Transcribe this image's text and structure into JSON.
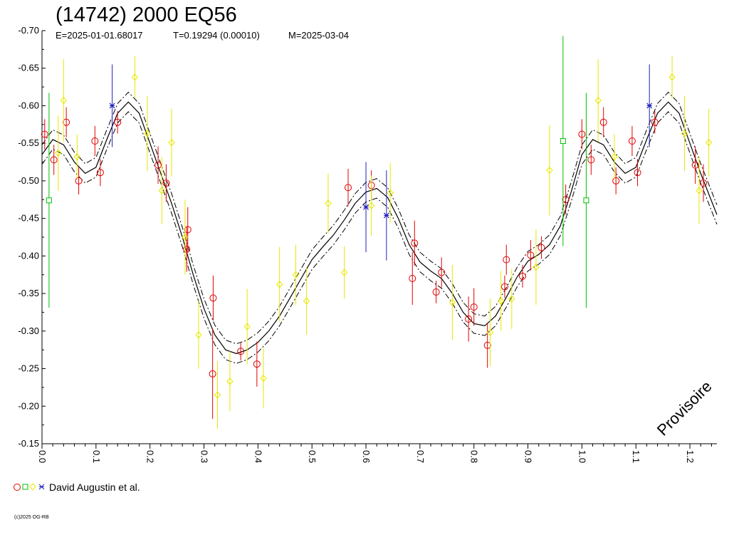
{
  "header": {
    "title": "(14742) 2000 EQ56",
    "epoch": "E=2025-01-01.68017",
    "period": "T=0.19294 (0.00010)",
    "date": "M=2025-03-04"
  },
  "legend": {
    "label": "David Augustin et al."
  },
  "watermark": "Provisoire",
  "copyright": "(c)2025 OG-RB",
  "chart_data": {
    "type": "scatter",
    "xlim": [
      0.0,
      1.25
    ],
    "ylim": [
      -0.7,
      -0.15
    ],
    "y_inverted": true,
    "grid": false,
    "x_ticks": [
      "0.0",
      "0.1",
      "0.2",
      "0.3",
      "0.4",
      "0.5",
      "0.6",
      "0.7",
      "0.8",
      "0.9",
      "1.0",
      "1.1",
      "1.2"
    ],
    "y_ticks": [
      "-0.70",
      "-0.65",
      "-0.60",
      "-0.55",
      "-0.50",
      "-0.45",
      "-0.40",
      "-0.35",
      "-0.30",
      "-0.25",
      "-0.20",
      "-0.15"
    ],
    "fit_curve": {
      "x": [
        0.0,
        0.02,
        0.04,
        0.06,
        0.08,
        0.1,
        0.12,
        0.14,
        0.16,
        0.18,
        0.2,
        0.22,
        0.24,
        0.26,
        0.28,
        0.3,
        0.32,
        0.34,
        0.36,
        0.38,
        0.4,
        0.42,
        0.44,
        0.46,
        0.48,
        0.5,
        0.52,
        0.54,
        0.56,
        0.58,
        0.6,
        0.62,
        0.64,
        0.66,
        0.68,
        0.7,
        0.72,
        0.74,
        0.76,
        0.78,
        0.8,
        0.82,
        0.84,
        0.86,
        0.88,
        0.9,
        0.92,
        0.94,
        0.96,
        0.98,
        1.0,
        1.02,
        1.04,
        1.06,
        1.08,
        1.1,
        1.12,
        1.14,
        1.16,
        1.18,
        1.2,
        1.22,
        1.25
      ],
      "y": [
        -0.535,
        -0.555,
        -0.548,
        -0.525,
        -0.51,
        -0.518,
        -0.555,
        -0.59,
        -0.605,
        -0.59,
        -0.55,
        -0.51,
        -0.47,
        -0.425,
        -0.375,
        -0.33,
        -0.295,
        -0.275,
        -0.27,
        -0.275,
        -0.285,
        -0.3,
        -0.32,
        -0.345,
        -0.37,
        -0.395,
        -0.412,
        -0.428,
        -0.448,
        -0.47,
        -0.485,
        -0.49,
        -0.478,
        -0.45,
        -0.415,
        -0.392,
        -0.38,
        -0.37,
        -0.35,
        -0.325,
        -0.31,
        -0.307,
        -0.32,
        -0.345,
        -0.372,
        -0.393,
        -0.402,
        -0.415,
        -0.44,
        -0.485,
        -0.535,
        -0.555,
        -0.548,
        -0.525,
        -0.51,
        -0.518,
        -0.555,
        -0.59,
        -0.605,
        -0.59,
        -0.55,
        -0.51,
        -0.455
      ],
      "band": 0.013
    },
    "series": [
      {
        "marker": "circle",
        "color": "#e00000",
        "points": [
          {
            "x": 0.005,
            "y": -0.562,
            "e": 0.02
          },
          {
            "x": 0.022,
            "y": -0.528,
            "e": 0.02
          },
          {
            "x": 0.045,
            "y": -0.578,
            "e": 0.02
          },
          {
            "x": 0.068,
            "y": -0.5,
            "e": 0.018
          },
          {
            "x": 0.098,
            "y": -0.553,
            "e": 0.02
          },
          {
            "x": 0.108,
            "y": -0.511,
            "e": 0.018
          },
          {
            "x": 0.14,
            "y": -0.578,
            "e": 0.015
          },
          {
            "x": 0.215,
            "y": -0.521,
            "e": 0.025
          },
          {
            "x": 0.23,
            "y": -0.497,
            "e": 0.025
          },
          {
            "x": 0.27,
            "y": -0.435,
            "e": 0.03
          },
          {
            "x": 0.268,
            "y": -0.409,
            "e": 0.03
          },
          {
            "x": 0.317,
            "y": -0.344,
            "e": 0.03
          },
          {
            "x": 0.316,
            "y": -0.243,
            "e": 0.06
          },
          {
            "x": 0.368,
            "y": -0.273,
            "e": 0.012
          },
          {
            "x": 0.398,
            "y": -0.256,
            "e": 0.03
          },
          {
            "x": 0.567,
            "y": -0.491,
            "e": 0.025
          },
          {
            "x": 0.61,
            "y": -0.494,
            "e": 0.02
          },
          {
            "x": 0.686,
            "y": -0.37,
            "e": 0.035
          },
          {
            "x": 0.69,
            "y": -0.417,
            "e": 0.03
          },
          {
            "x": 0.73,
            "y": -0.352,
            "e": 0.015
          },
          {
            "x": 0.74,
            "y": -0.378,
            "e": 0.02
          },
          {
            "x": 0.79,
            "y": -0.316,
            "e": 0.03
          },
          {
            "x": 0.8,
            "y": -0.332,
            "e": 0.025
          },
          {
            "x": 0.825,
            "y": -0.281,
            "e": 0.03
          },
          {
            "x": 0.857,
            "y": -0.359,
            "e": 0.015
          },
          {
            "x": 0.86,
            "y": -0.395,
            "e": 0.02
          },
          {
            "x": 0.89,
            "y": -0.373,
            "e": 0.015
          },
          {
            "x": 0.905,
            "y": -0.401,
            "e": 0.02
          },
          {
            "x": 0.925,
            "y": -0.411,
            "e": 0.015
          },
          {
            "x": 0.97,
            "y": -0.475,
            "e": 0.02
          },
          {
            "x": 1.0,
            "y": -0.562,
            "e": 0.02
          },
          {
            "x": 1.017,
            "y": -0.528,
            "e": 0.02
          },
          {
            "x": 1.04,
            "y": -0.578,
            "e": 0.02
          },
          {
            "x": 1.063,
            "y": -0.5,
            "e": 0.018
          },
          {
            "x": 1.093,
            "y": -0.553,
            "e": 0.02
          },
          {
            "x": 1.103,
            "y": -0.511,
            "e": 0.018
          },
          {
            "x": 1.135,
            "y": -0.578,
            "e": 0.015
          },
          {
            "x": 1.21,
            "y": -0.521,
            "e": 0.025
          },
          {
            "x": 1.225,
            "y": -0.497,
            "e": 0.025
          }
        ]
      },
      {
        "marker": "square",
        "color": "#00c000",
        "points": [
          {
            "x": 0.013,
            "y": -0.474,
            "e": 0.143
          },
          {
            "x": 0.965,
            "y": -0.553,
            "e": 0.14
          },
          {
            "x": 1.008,
            "y": -0.474,
            "e": 0.143
          }
        ]
      },
      {
        "marker": "diamond",
        "color": "#e8e800",
        "points": [
          {
            "x": 0.03,
            "y": -0.537,
            "e": 0.05
          },
          {
            "x": 0.04,
            "y": -0.607,
            "e": 0.055
          },
          {
            "x": 0.065,
            "y": -0.532,
            "e": 0.03
          },
          {
            "x": 0.172,
            "y": -0.638,
            "e": 0.028
          },
          {
            "x": 0.195,
            "y": -0.563,
            "e": 0.05
          },
          {
            "x": 0.222,
            "y": -0.487,
            "e": 0.045
          },
          {
            "x": 0.24,
            "y": -0.551,
            "e": 0.045
          },
          {
            "x": 0.265,
            "y": -0.425,
            "e": 0.05
          },
          {
            "x": 0.29,
            "y": -0.295,
            "e": 0.045
          },
          {
            "x": 0.325,
            "y": -0.215,
            "e": 0.045
          },
          {
            "x": 0.348,
            "y": -0.233,
            "e": 0.04
          },
          {
            "x": 0.38,
            "y": -0.306,
            "e": 0.05
          },
          {
            "x": 0.41,
            "y": -0.237,
            "e": 0.04
          },
          {
            "x": 0.44,
            "y": -0.362,
            "e": 0.05
          },
          {
            "x": 0.47,
            "y": -0.375,
            "e": 0.04
          },
          {
            "x": 0.49,
            "y": -0.34,
            "e": 0.045
          },
          {
            "x": 0.53,
            "y": -0.47,
            "e": 0.04
          },
          {
            "x": 0.56,
            "y": -0.378,
            "e": 0.035
          },
          {
            "x": 0.61,
            "y": -0.467,
            "e": 0.04
          },
          {
            "x": 0.645,
            "y": -0.484,
            "e": 0.04
          },
          {
            "x": 0.76,
            "y": -0.338,
            "e": 0.05
          },
          {
            "x": 0.83,
            "y": -0.298,
            "e": 0.045
          },
          {
            "x": 0.85,
            "y": -0.34,
            "e": 0.04
          },
          {
            "x": 0.87,
            "y": -0.343,
            "e": 0.04
          },
          {
            "x": 0.915,
            "y": -0.385,
            "e": 0.05
          },
          {
            "x": 0.94,
            "y": -0.514,
            "e": 0.06
          },
          {
            "x": 1.03,
            "y": -0.607,
            "e": 0.055
          },
          {
            "x": 1.06,
            "y": -0.532,
            "e": 0.03
          },
          {
            "x": 1.167,
            "y": -0.638,
            "e": 0.028
          },
          {
            "x": 1.19,
            "y": -0.563,
            "e": 0.05
          },
          {
            "x": 1.217,
            "y": -0.487,
            "e": 0.045
          },
          {
            "x": 1.235,
            "y": -0.551,
            "e": 0.045
          }
        ]
      },
      {
        "marker": "star",
        "color": "#2020c0",
        "points": [
          {
            "x": 0.13,
            "y": -0.6,
            "e": 0.055
          },
          {
            "x": 0.6,
            "y": -0.465,
            "e": 0.06
          },
          {
            "x": 0.638,
            "y": -0.454,
            "e": 0.06
          },
          {
            "x": 1.125,
            "y": -0.6,
            "e": 0.055
          }
        ]
      }
    ]
  }
}
